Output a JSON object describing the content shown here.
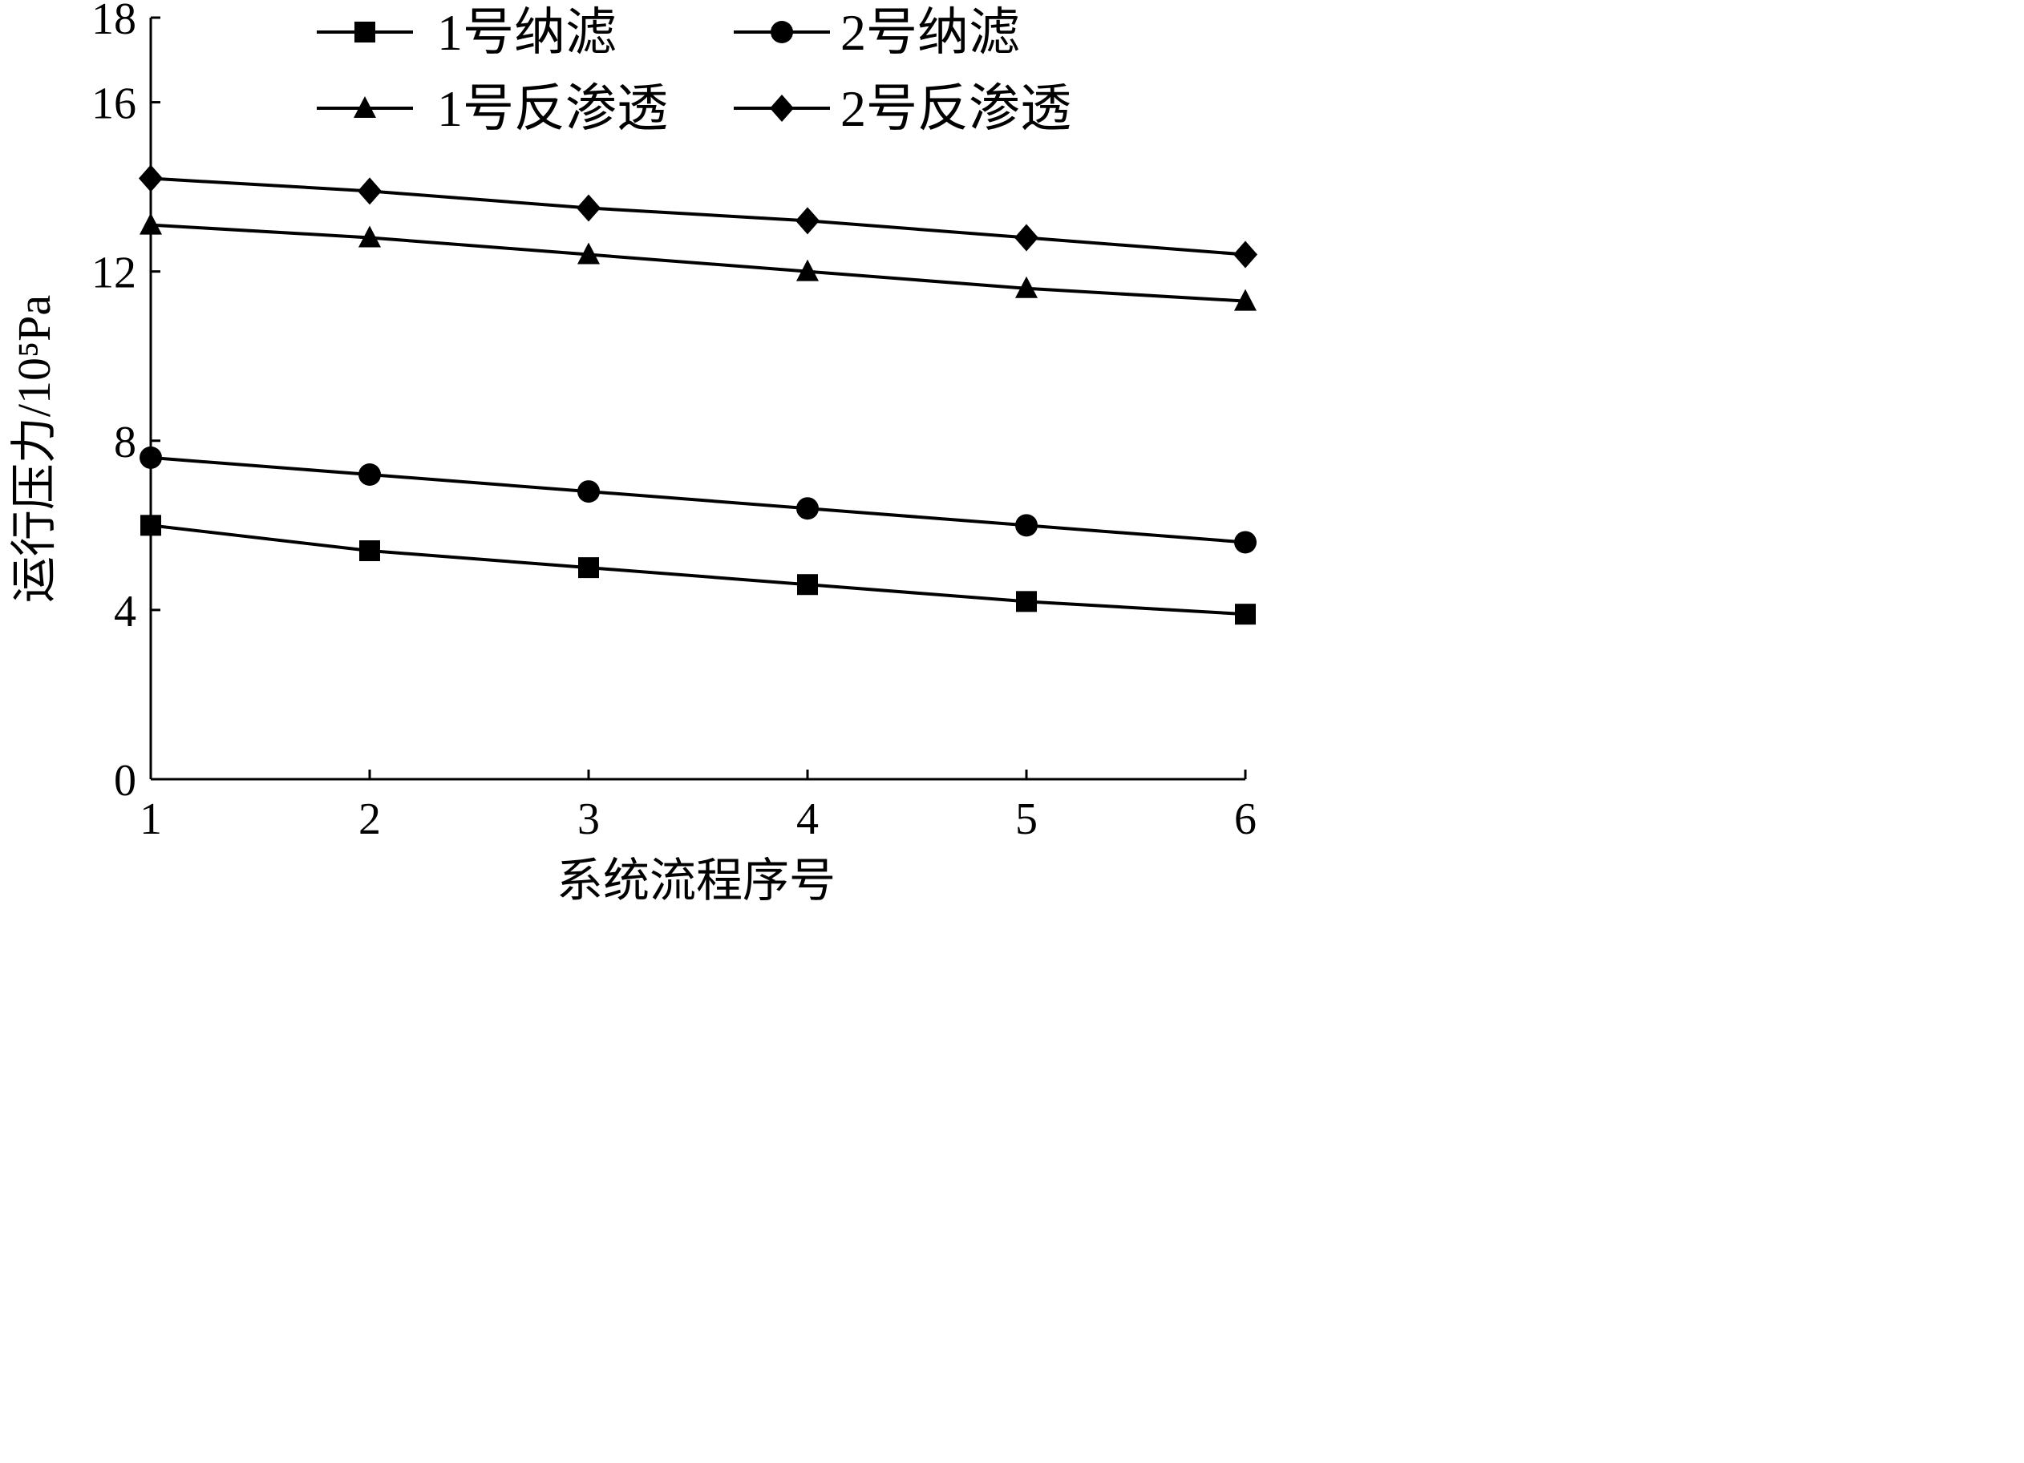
{
  "chart_data": {
    "type": "line",
    "xlabel": "系统流程序号",
    "ylabel": "运行压力/10⁵Pa",
    "x": [
      1,
      2,
      3,
      4,
      5,
      6
    ],
    "xlim": [
      1,
      6
    ],
    "ylim": [
      0,
      18
    ],
    "yticks": [
      0,
      4,
      8,
      12,
      16,
      18
    ],
    "xticks": [
      1,
      2,
      3,
      4,
      5,
      6
    ],
    "grid": false,
    "legend_position": "top",
    "series": [
      {
        "name": "1号纳滤",
        "marker": "square",
        "values": [
          6.0,
          5.4,
          5.0,
          4.6,
          4.2,
          3.9
        ]
      },
      {
        "name": "2号纳滤",
        "marker": "circle",
        "values": [
          7.6,
          7.2,
          6.8,
          6.4,
          6.0,
          5.6
        ]
      },
      {
        "name": "1号反渗透",
        "marker": "triangle",
        "values": [
          13.1,
          12.8,
          12.4,
          12.0,
          11.6,
          11.3
        ]
      },
      {
        "name": "2号反渗透",
        "marker": "diamond",
        "values": [
          14.2,
          13.9,
          13.5,
          13.2,
          12.8,
          12.4
        ]
      }
    ],
    "colors": {
      "line": "#000000",
      "axis": "#000000"
    }
  }
}
